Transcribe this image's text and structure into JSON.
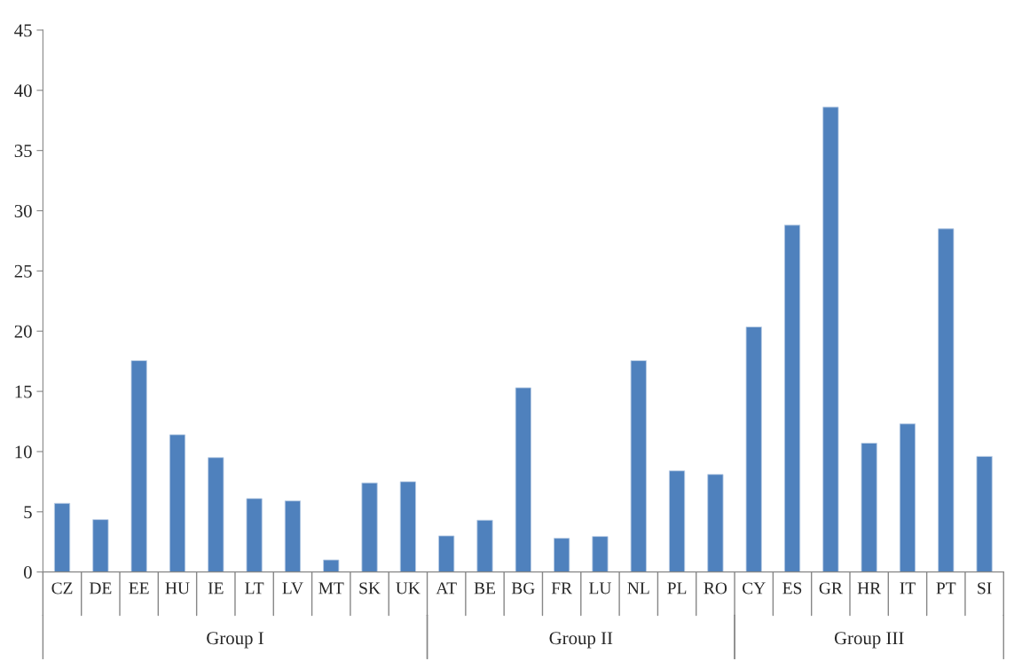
{
  "chart_data": {
    "type": "bar",
    "categories": [
      "CZ",
      "DE",
      "EE",
      "HU",
      "IE",
      "LT",
      "LV",
      "MT",
      "SK",
      "UK",
      "AT",
      "BE",
      "BG",
      "FR",
      "LU",
      "NL",
      "PL",
      "RO",
      "CY",
      "ES",
      "GR",
      "HR",
      "IT",
      "PT",
      "SI"
    ],
    "values": [
      5.7,
      4.35,
      17.55,
      11.4,
      9.5,
      6.1,
      5.9,
      1.0,
      7.4,
      7.5,
      3.0,
      4.3,
      15.3,
      2.8,
      2.95,
      17.55,
      8.4,
      8.1,
      20.35,
      28.8,
      38.6,
      10.7,
      12.3,
      28.5,
      9.6
    ],
    "color": "#4f81bd",
    "ylim": [
      0,
      45
    ],
    "yticks": [
      0,
      5,
      10,
      15,
      20,
      25,
      30,
      35,
      40,
      45
    ],
    "grid": false,
    "legend": false,
    "annotations": [
      "Group I",
      "Group II",
      "Group III"
    ]
  }
}
